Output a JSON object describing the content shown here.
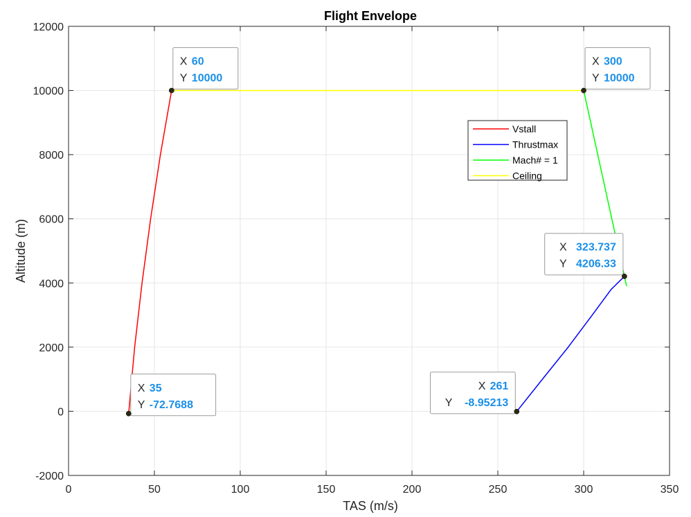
{
  "chart_data": {
    "type": "line",
    "title": "Flight Envelope",
    "xlabel": "TAS (m/s)",
    "ylabel": "Altitude (m)",
    "xlim": [
      0,
      350
    ],
    "ylim": [
      -2000,
      12000
    ],
    "xticks": [
      0,
      50,
      100,
      150,
      200,
      250,
      300,
      350
    ],
    "yticks": [
      -2000,
      0,
      2000,
      4000,
      6000,
      8000,
      10000,
      12000
    ],
    "grid": true,
    "legend_position": "upper-right-inside",
    "series": [
      {
        "name": "Vstall",
        "color": "#ff0000",
        "points": [
          [
            35,
            -72.7688
          ],
          [
            38.5,
            2000
          ],
          [
            42.8,
            4000
          ],
          [
            47.8,
            6000
          ],
          [
            53.5,
            8000
          ],
          [
            60,
            10000
          ]
        ]
      },
      {
        "name": "Thrustmax",
        "color": "#0000ff",
        "points": [
          [
            261,
            -8.95213
          ],
          [
            276,
            1000
          ],
          [
            291,
            2000
          ],
          [
            305,
            3000
          ],
          [
            316,
            3800
          ],
          [
            323.737,
            4206.33
          ]
        ]
      },
      {
        "name": "Mach# = 1",
        "color": "#00ff00",
        "points": [
          [
            300,
            10000
          ],
          [
            325,
            3900
          ]
        ]
      },
      {
        "name": "Ceiling",
        "color": "#ffff00",
        "points": [
          [
            60,
            10000
          ],
          [
            300,
            10000
          ]
        ]
      }
    ],
    "datatips": [
      {
        "x": 60,
        "y": 10000,
        "x_text": "60",
        "y_text": "10000",
        "side": "right"
      },
      {
        "x": 300,
        "y": 10000,
        "x_text": "300",
        "y_text": "10000",
        "side": "right"
      },
      {
        "x": 323.737,
        "y": 4206.33,
        "x_text": "323.737",
        "y_text": "4206.33",
        "side": "left"
      },
      {
        "x": 35,
        "y": -72.7688,
        "x_text": "35",
        "y_text": "-72.7688",
        "side": "right"
      },
      {
        "x": 261,
        "y": -8.95213,
        "x_text": "261",
        "y_text": "-8.95213",
        "side": "left"
      }
    ],
    "datatip_labels": {
      "x": "X",
      "y": "Y"
    }
  },
  "colors": {
    "datatip_value": "#1a8fe8",
    "datatip_marker": "#2a2a14",
    "grid": "#e6e6e6",
    "axis": "#262626"
  }
}
